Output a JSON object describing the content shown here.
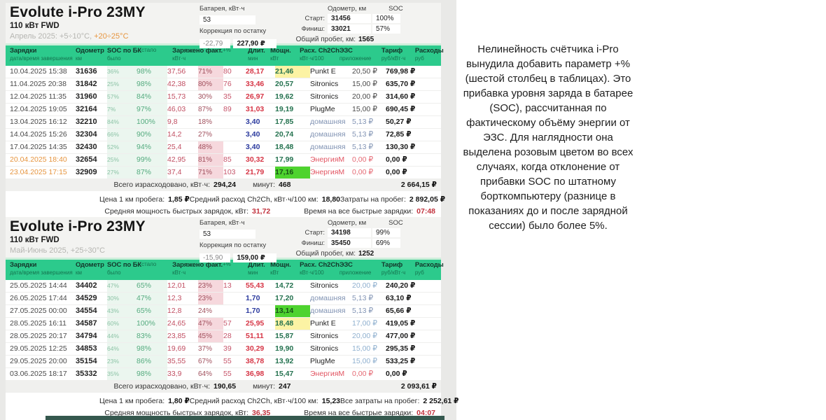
{
  "note": {
    "text": "Нелинейность счётчика i-Pro вынудила добавить параметр +% (шестой столбец в таблицах). Это прибавка уровня заряда в батарее (SOC), рассчитанная по фактическому объёму энергии от ЭЗС. Для наглядности она выделена розовым цветом во всех случаях, когда отклонение от прибавки SOC по штатному борткомпьютеру (разнице в показаниях до и после зарядной сессии) было более 5%."
  },
  "colors": {
    "accent_green": "#2cca8c",
    "pink_flag": "#f6d8dd",
    "yellow_flag": "#fcf3a4",
    "green_flag": "#4ed32f",
    "fast_red": "#d63545",
    "slow_blue": "#2b3a9e",
    "warm_orange": "#e6953f"
  },
  "columns": [
    {
      "l1": "Зарядки",
      "l2": "дата/время завершения"
    },
    {
      "l1": "Одометр",
      "l2": "км"
    },
    {
      "l1": "SOC по БК",
      "l2": "было"
    },
    {
      "l1": "",
      "l2": "стало"
    },
    {
      "l1": "Заряжено факт.",
      "l2": "кВт·ч"
    },
    {
      "l1": "",
      "l2": "+%"
    },
    {
      "l1": "Длит.",
      "l2": "мин"
    },
    {
      "l1": "Мощн.",
      "l2": "кВт"
    },
    {
      "l1": "Расх. Ch2Ch",
      "l2": "кВт·ч/100"
    },
    {
      "l1": "ЭЗС",
      "l2": "приложение"
    },
    {
      "l1": "Тариф",
      "l2": "руб/кВт·ч"
    },
    {
      "l1": "Расходы",
      "l2": "руб"
    }
  ],
  "tables": [
    {
      "title": "Evolute i-Pro 23MY",
      "subtitle": "110 кВт FWD",
      "period": "Апрель 2025: +5÷10°C,",
      "period_highlight": "+20÷25°C",
      "battery_label": "Батарея, кВт·ч",
      "battery": "53",
      "correction_label": "Коррекция по остатку",
      "correction_kwh": "-22,79",
      "correction_rub": "227,90 ₽",
      "odometer_label": "Одометр, км",
      "soc_label": "SOC",
      "start_label": "Старт:",
      "finish_label": "Финиш:",
      "odo_start": "31456",
      "odo_finish": "33021",
      "soc_start": "100%",
      "soc_finish": "57%",
      "mileage_label": "Общий пробег, км:",
      "mileage": "1565",
      "rows": [
        {
          "date": "10.04.2025 15:38",
          "odo": "31636",
          "was": "36%",
          "now": "98%",
          "kwh": "37,56",
          "pct": "71%",
          "min": "80",
          "kw": "28,17",
          "rasx": "21,46",
          "ezs": "Punkt E",
          "tariff": "20,50 ₽",
          "cost": "769,98 ₽",
          "pink": true,
          "rasx_hl": "yellow",
          "ezs_style": "net",
          "tariff_style": "dark"
        },
        {
          "date": "11.04.2025 20:38",
          "odo": "31842",
          "was": "25%",
          "now": "98%",
          "kwh": "42,38",
          "pct": "80%",
          "min": "76",
          "kw": "33,46",
          "rasx": "20,57",
          "ezs": "Sitronics",
          "tariff": "15,00 ₽",
          "cost": "635,70 ₽",
          "pink": true,
          "ezs_style": "net",
          "tariff_style": "dark"
        },
        {
          "date": "12.04.2025 11:35",
          "odo": "31960",
          "was": "57%",
          "now": "84%",
          "kwh": "15,73",
          "pct": "30%",
          "min": "35",
          "kw": "26,97",
          "rasx": "19,62",
          "ezs": "Sitronics",
          "tariff": "20,00 ₽",
          "cost": "314,60 ₽",
          "ezs_style": "net",
          "tariff_style": "dark"
        },
        {
          "date": "12.04.2025 19:05",
          "odo": "32164",
          "was": "7%",
          "now": "97%",
          "kwh": "46,03",
          "pct": "87%",
          "min": "89",
          "kw": "31,03",
          "rasx": "19,19",
          "ezs": "PlugMe",
          "tariff": "15,00 ₽",
          "cost": "690,45 ₽",
          "ezs_style": "net",
          "tariff_style": "dark"
        },
        {
          "date": "13.04.2025 16:12",
          "odo": "32210",
          "was": "84%",
          "now": "100%",
          "kwh": "9,8",
          "pct": "18%",
          "min": "",
          "kw": "3,40",
          "rasx": "17,85",
          "ezs": "домашняя",
          "tariff": "5,13 ₽",
          "cost": "50,27 ₽",
          "slow": true,
          "ezs_style": "home",
          "tariff_style": "home"
        },
        {
          "date": "14.04.2025 15:26",
          "odo": "32304",
          "was": "66%",
          "now": "90%",
          "kwh": "14,2",
          "pct": "27%",
          "min": "",
          "kw": "3,40",
          "rasx": "20,74",
          "ezs": "домашняя",
          "tariff": "5,13 ₽",
          "cost": "72,85 ₽",
          "slow": true,
          "ezs_style": "home",
          "tariff_style": "home"
        },
        {
          "date": "17.04.2025 14:35",
          "odo": "32430",
          "was": "52%",
          "now": "94%",
          "kwh": "25,4",
          "pct": "48%",
          "min": "",
          "kw": "3,40",
          "rasx": "18,48",
          "ezs": "домашняя",
          "tariff": "5,13 ₽",
          "cost": "130,30 ₽",
          "pink": true,
          "slow": true,
          "ezs_style": "home",
          "tariff_style": "home"
        },
        {
          "date": "20.04.2025 18:40",
          "odo": "32654",
          "was": "25%",
          "now": "99%",
          "kwh": "42,95",
          "pct": "81%",
          "min": "85",
          "kw": "30,32",
          "rasx": "17,99",
          "ezs": "ЭнергияМ",
          "tariff": "0,00 ₽",
          "cost": "0,00 ₽",
          "pink": true,
          "orange": true,
          "ezs_style": "free",
          "tariff_style": "free"
        },
        {
          "date": "23.04.2025 17:15",
          "odo": "32909",
          "was": "27%",
          "now": "87%",
          "kwh": "37,4",
          "pct": "71%",
          "min": "103",
          "kw": "21,79",
          "rasx": "17,16",
          "ezs": "ЭнергияМ",
          "tariff": "0,00 ₽",
          "cost": "0,00 ₽",
          "pink": true,
          "orange": true,
          "rasx_hl": "green",
          "ezs_style": "free",
          "tariff_style": "free"
        }
      ],
      "totals": {
        "label": "Всего израсходовано, кВт·ч:",
        "kwh": "294,24",
        "minutes_label": "минут:",
        "minutes": "468",
        "cost": "2 664,15 ₽"
      },
      "summary1": [
        {
          "label": "Цена 1 км пробега:",
          "value": "1,85 ₽"
        },
        {
          "label": "Средний расход Ch2Ch, кВт·ч/100 км:",
          "value": "18,80"
        },
        {
          "label": "Затраты на пробег:",
          "value": "2 892,05 ₽"
        }
      ],
      "summary2": [
        {
          "label": "Средняя мощность быстрых зарядок, кВт:",
          "value": "31,72",
          "red": true
        },
        {
          "label": "Время на все быстрые зарядки:",
          "value": "07:48",
          "red": true
        }
      ]
    },
    {
      "title": "Evolute i-Pro 23MY",
      "subtitle": "110 кВт FWD",
      "period": "Май-Июнь 2025, +25÷30°C",
      "period_highlight": "",
      "battery_label": "Батарея, кВт·ч",
      "battery": "53",
      "correction_label": "Коррекция по остатку",
      "correction_kwh": "-15,90",
      "correction_rub": "159,00 ₽",
      "odometer_label": "Одометр, км",
      "soc_label": "SOC",
      "start_label": "Старт:",
      "finish_label": "Финиш:",
      "odo_start": "34198",
      "odo_finish": "35450",
      "soc_start": "99%",
      "soc_finish": "69%",
      "mileage_label": "Общий пробег, км:",
      "mileage": "1252",
      "rows": [
        {
          "date": "25.05.2025 14:44",
          "odo": "34402",
          "was": "47%",
          "now": "65%",
          "kwh": "12,01",
          "pct": "23%",
          "min": "13",
          "kw": "55,43",
          "rasx": "14,72",
          "ezs": "Sitronics",
          "tariff": "20,00 ₽",
          "cost": "240,20 ₽",
          "pink": true,
          "ezs_style": "net",
          "tariff_style": "light"
        },
        {
          "date": "26.05.2025 17:44",
          "odo": "34529",
          "was": "30%",
          "now": "47%",
          "kwh": "12,3",
          "pct": "23%",
          "min": "",
          "kw": "1,70",
          "rasx": "17,20",
          "ezs": "домашняя",
          "tariff": "5,13 ₽",
          "cost": "63,10 ₽",
          "pink": true,
          "slow": true,
          "ezs_style": "home",
          "tariff_style": "home"
        },
        {
          "date": "27.05.2025 00:00",
          "odo": "34554",
          "was": "43%",
          "now": "65%",
          "kwh": "12,8",
          "pct": "24%",
          "min": "",
          "kw": "1,70",
          "rasx": "13,14",
          "ezs": "домашняя",
          "tariff": "5,13 ₽",
          "cost": "65,66 ₽",
          "slow": true,
          "rasx_hl": "green",
          "ezs_style": "home",
          "tariff_style": "home"
        },
        {
          "date": "28.05.2025 16:11",
          "odo": "34587",
          "was": "60%",
          "now": "100%",
          "kwh": "24,65",
          "pct": "47%",
          "min": "57",
          "kw": "25,95",
          "rasx": "18,48",
          "ezs": "Punkt E",
          "tariff": "17,00 ₽",
          "cost": "419,05 ₽",
          "pink": true,
          "rasx_hl": "yellow",
          "ezs_style": "net",
          "tariff_style": "light"
        },
        {
          "date": "28.05.2025 20:17",
          "odo": "34794",
          "was": "44%",
          "now": "83%",
          "kwh": "23,85",
          "pct": "45%",
          "min": "28",
          "kw": "51,11",
          "rasx": "15,87",
          "ezs": "Sitronics",
          "tariff": "20,00 ₽",
          "cost": "477,00 ₽",
          "pink": true,
          "ezs_style": "net",
          "tariff_style": "light"
        },
        {
          "date": "29.05.2025 12:25",
          "odo": "34853",
          "was": "64%",
          "now": "98%",
          "kwh": "19,69",
          "pct": "37%",
          "min": "39",
          "kw": "30,29",
          "rasx": "19,90",
          "ezs": "Sitronics",
          "tariff": "15,00 ₽",
          "cost": "295,35 ₽",
          "ezs_style": "net",
          "tariff_style": "light"
        },
        {
          "date": "29.05.2025 20:00",
          "odo": "35154",
          "was": "23%",
          "now": "86%",
          "kwh": "35,55",
          "pct": "67%",
          "min": "55",
          "kw": "38,78",
          "rasx": "13,92",
          "ezs": "PlugMe",
          "tariff": "15,00 ₽",
          "cost": "533,25 ₽",
          "ezs_style": "net",
          "tariff_style": "light"
        },
        {
          "date": "03.06.2025 18:17",
          "odo": "35332",
          "was": "35%",
          "now": "98%",
          "kwh": "33,9",
          "pct": "64%",
          "min": "55",
          "kw": "36,98",
          "rasx": "15,47",
          "ezs": "ЭнергияМ",
          "tariff": "0,00 ₽",
          "cost": "0,00 ₽",
          "ezs_style": "free",
          "tariff_style": "free"
        }
      ],
      "totals": {
        "label": "Всего израсходовано, кВт·ч:",
        "kwh": "190,65",
        "minutes_label": "минут:",
        "minutes": "247",
        "cost": "2 093,61 ₽"
      },
      "summary1": [
        {
          "label": "Цена 1 км пробега:",
          "value": "1,80 ₽"
        },
        {
          "label": "Средний расход Ch2Ch, кВт·ч/100 км:",
          "value": "15,23"
        },
        {
          "label": "Все затраты на пробег:",
          "value": "2 252,61 ₽"
        }
      ],
      "summary2": [
        {
          "label": "Средняя мощность быстрых зарядок, кВт:",
          "value": "36,35",
          "red": true
        },
        {
          "label": "Время на все быстрые зарядки:",
          "value": "04:07",
          "red": true
        }
      ]
    }
  ]
}
